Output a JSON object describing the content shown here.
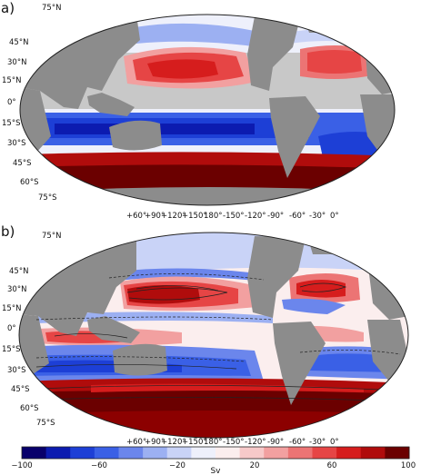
{
  "panels": [
    {
      "label": "a)",
      "lat_labels": [
        "75°N",
        "45°N",
        "30°N",
        "15°N",
        "0°",
        "15°S",
        "30°S",
        "45°S",
        "60°S",
        "75°S"
      ],
      "lon_labels": [
        "+60°",
        "+90°",
        "+120°",
        "+150°",
        "180°",
        "-150°",
        "-120°",
        "-90°",
        "-60°",
        "-30°",
        "0°"
      ]
    },
    {
      "label": "b)",
      "lat_labels": [
        "75°N",
        "45°N",
        "30°N",
        "15°N",
        "0°",
        "15°S",
        "30°S",
        "45°S",
        "60°S",
        "75°S"
      ],
      "lon_labels": [
        "+60°",
        "+90°",
        "+120°",
        "+150°",
        "180°",
        "-150°",
        "-120°",
        "-90°",
        "-60°",
        "-30°",
        "0°"
      ]
    }
  ],
  "colorbar": {
    "unit": "Sv",
    "ticks": [
      "−100",
      "−60",
      "−20",
      "20",
      "60",
      "100"
    ],
    "colors": [
      "#08006b",
      "#0c1bb0",
      "#1d3fd6",
      "#3a60e6",
      "#6b86ec",
      "#9cb0f2",
      "#c9d3f7",
      "#eef0fb",
      "#fbeeee",
      "#f7c9c9",
      "#f2a0a0",
      "#ec7474",
      "#e64545",
      "#d61d1d",
      "#b00c0c",
      "#6b0000"
    ]
  },
  "map_colors": {
    "land": "#8c8c8c",
    "masked": "#c8c8c8",
    "zero": "#ffffff"
  }
}
